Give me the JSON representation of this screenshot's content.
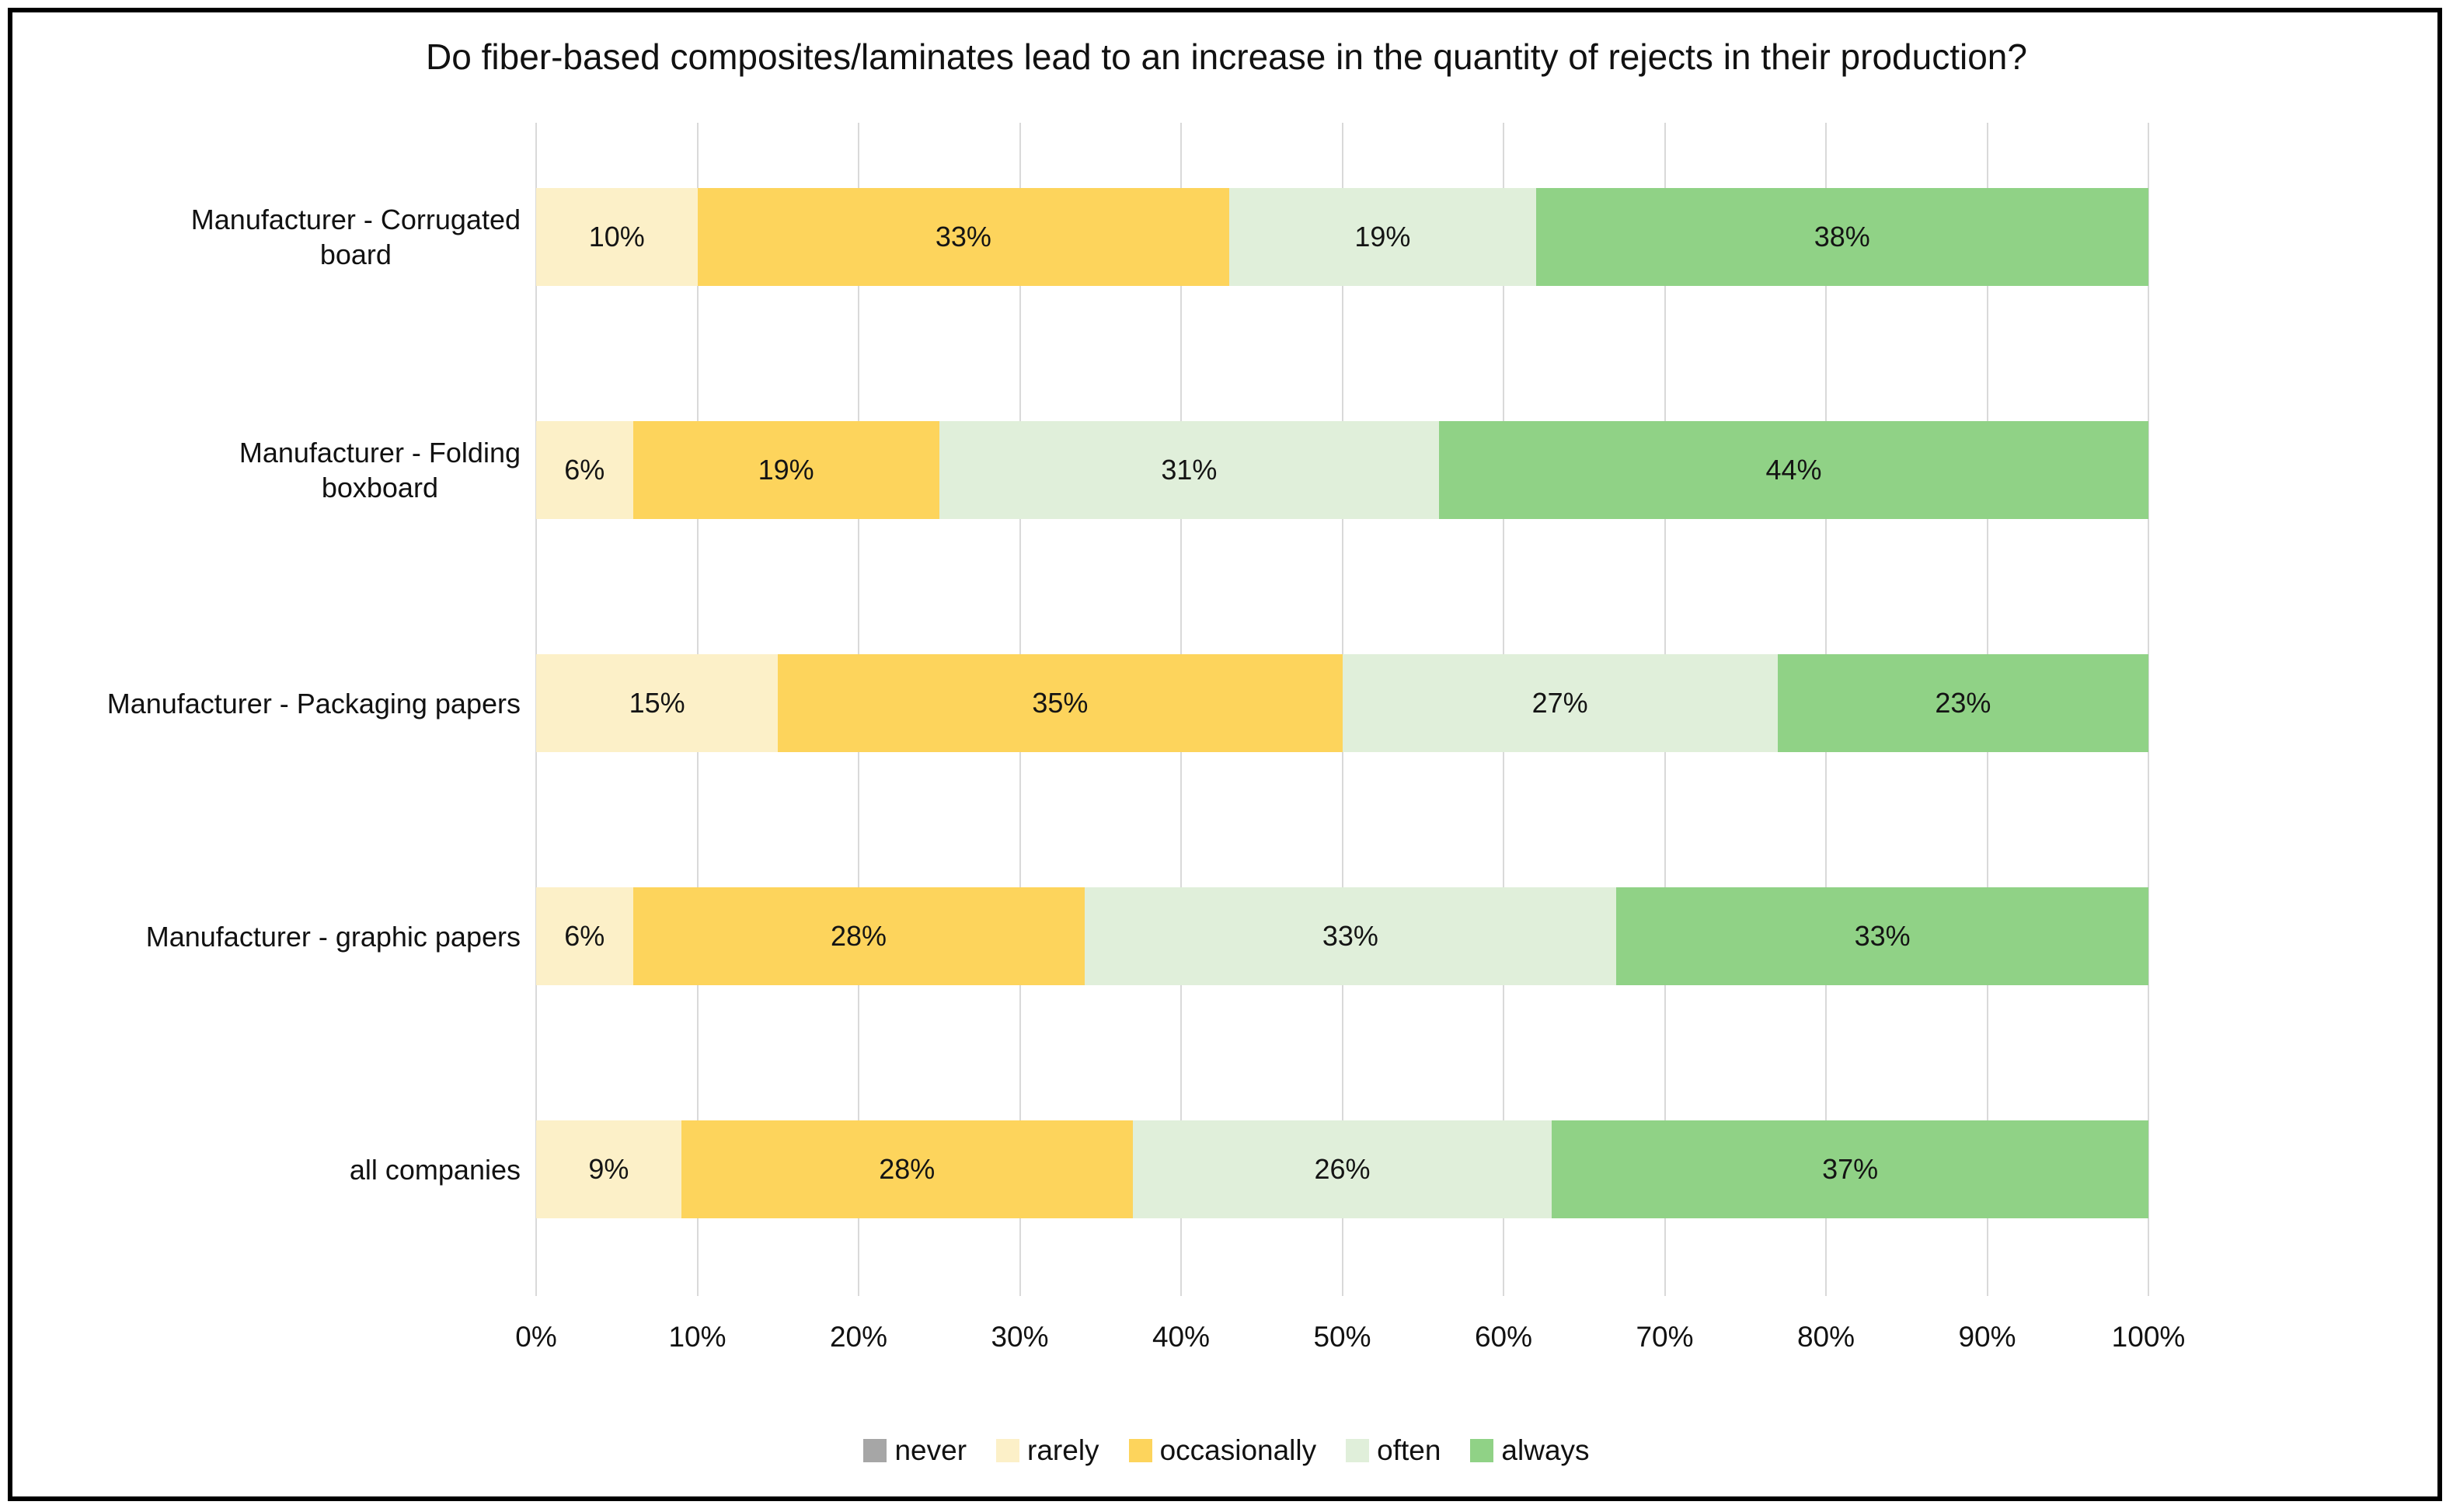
{
  "chart_data": {
    "type": "bar",
    "orientation": "horizontal",
    "stacked": true,
    "title": "Do fiber-based composites/laminates lead to an increase in the quantity of rejects in their production?",
    "categories": [
      "Manufacturer - Corrugated\nboard",
      "Manufacturer - Folding\nboxboard",
      "Manufacturer - Packaging papers",
      "Manufacturer - graphic papers",
      "all companies"
    ],
    "series": [
      {
        "name": "never",
        "color": "#A6A6A6",
        "values": [
          0,
          0,
          0,
          0,
          0
        ]
      },
      {
        "name": "rarely",
        "color": "#FCF0C8",
        "values": [
          10,
          6,
          15,
          6,
          9
        ]
      },
      {
        "name": "occasionally",
        "color": "#FDD45C",
        "values": [
          33,
          19,
          35,
          28,
          28
        ]
      },
      {
        "name": "often",
        "color": "#E0EFDA",
        "values": [
          19,
          31,
          27,
          33,
          26
        ]
      },
      {
        "name": "always",
        "color": "#90D286",
        "values": [
          38,
          44,
          23,
          33,
          37
        ]
      }
    ],
    "x_ticks": [
      "0%",
      "10%",
      "20%",
      "30%",
      "40%",
      "50%",
      "60%",
      "70%",
      "80%",
      "90%",
      "100%"
    ],
    "xlim": [
      0,
      100
    ],
    "value_suffix": "%",
    "grid": "vertical",
    "gridline_color": "#D9D9D9",
    "legend_position": "bottom"
  }
}
